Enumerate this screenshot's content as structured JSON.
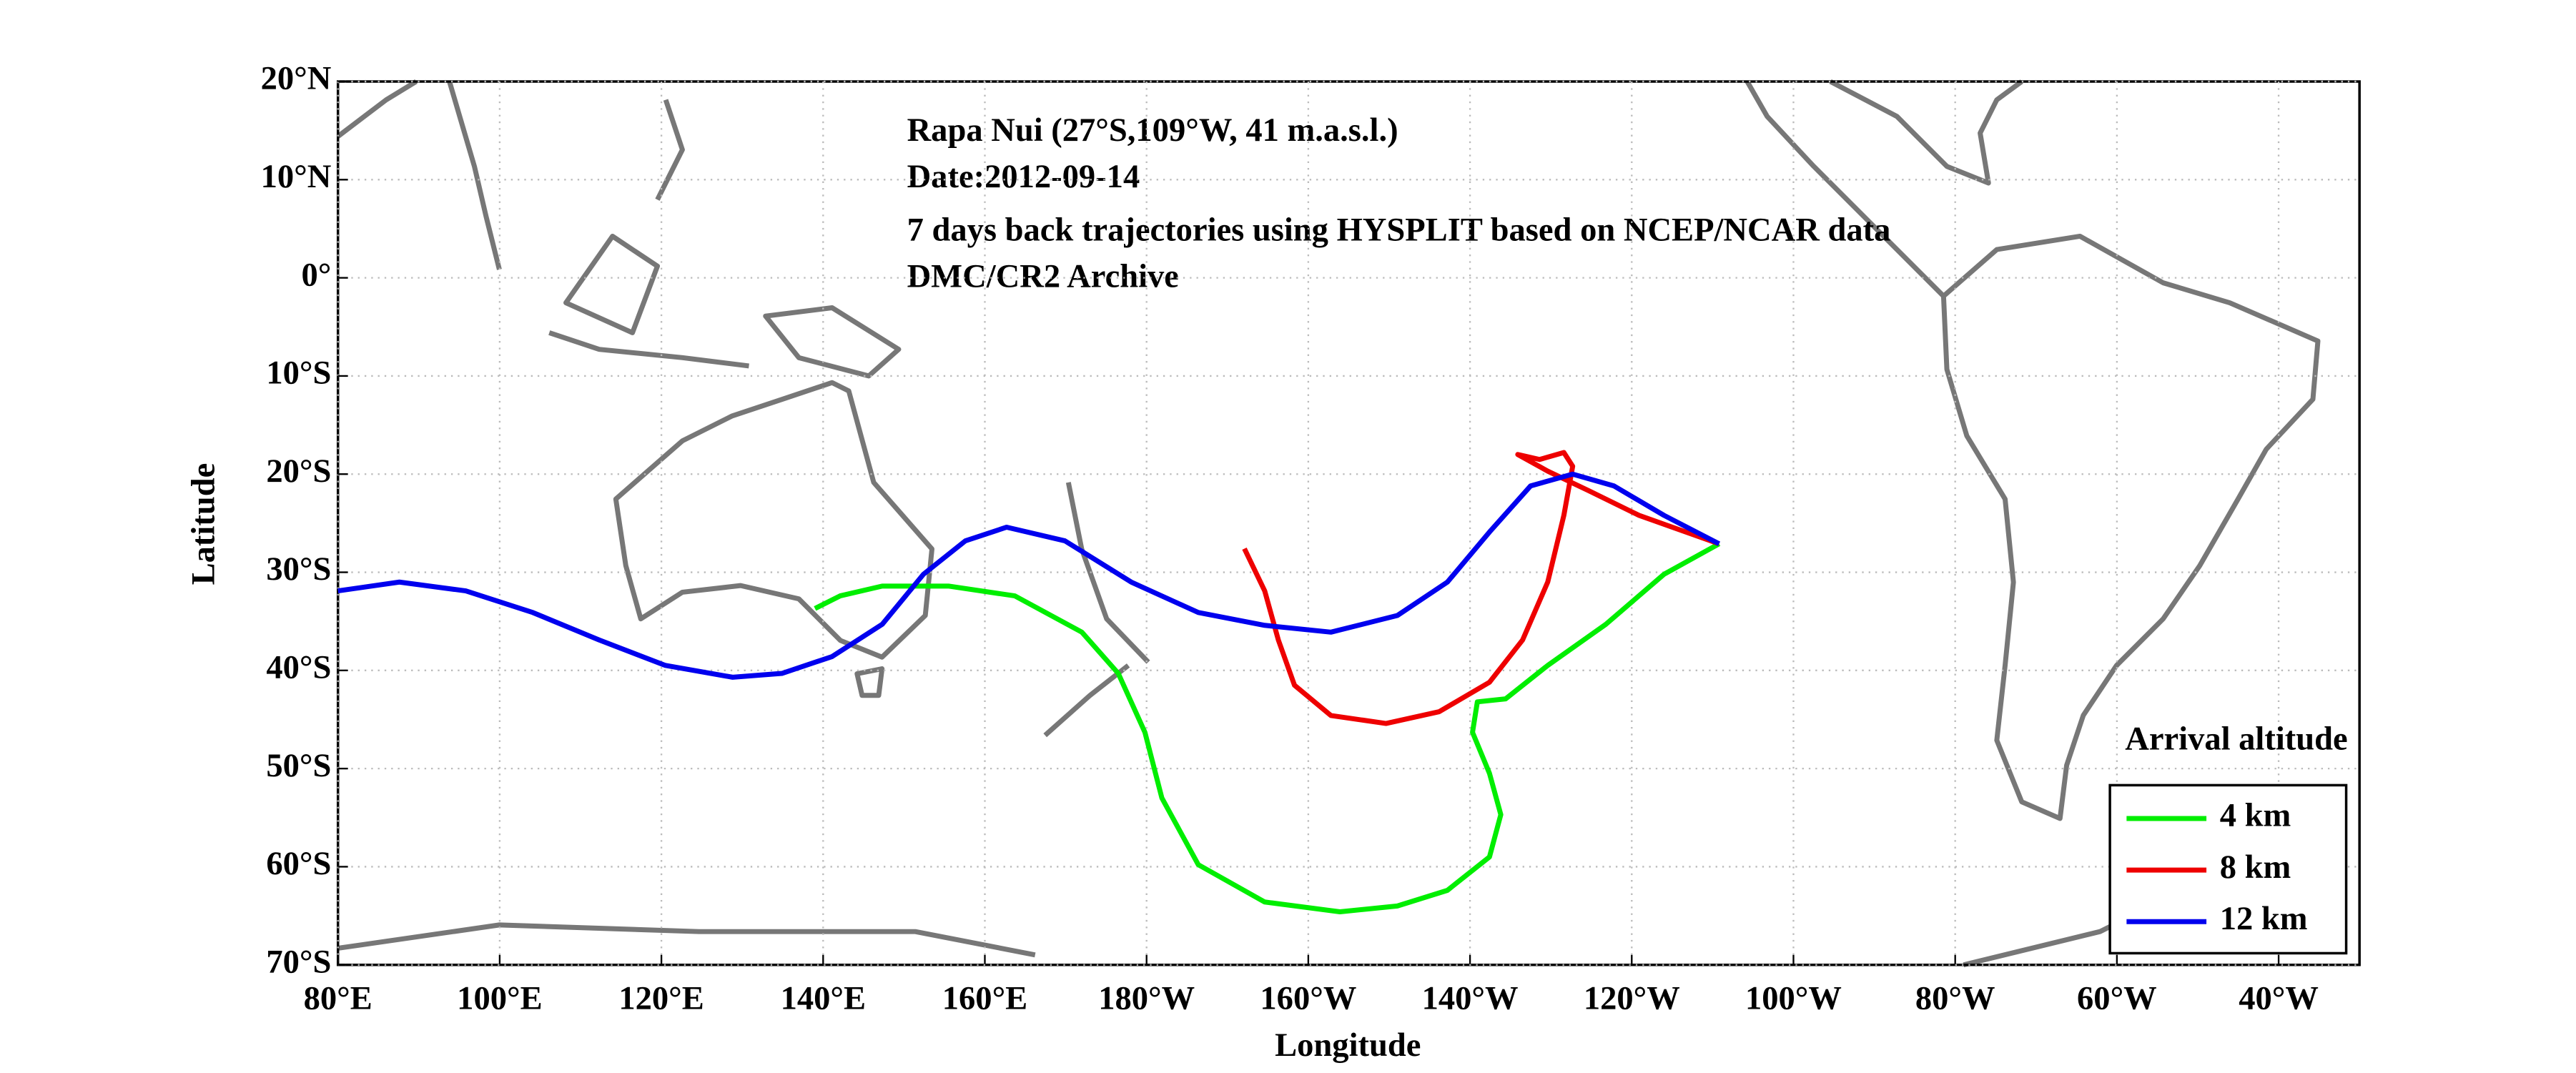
{
  "chart_data": {
    "type": "line",
    "annotations": [
      "Rapa Nui (27°S,109°W, 41 m.a.s.l.)",
      "Date:2012-09-14",
      "7 days back trajectories using HYSPLIT based on NCEP/NCAR data",
      "DMC/CR2 Archive"
    ],
    "x_label": "Longitude",
    "y_label": "Latitude",
    "xlim": [
      80,
      330
    ],
    "ylim": [
      -70,
      20
    ],
    "xticks": [
      {
        "value": 80,
        "label": "80°E"
      },
      {
        "value": 100,
        "label": "100°E"
      },
      {
        "value": 120,
        "label": "120°E"
      },
      {
        "value": 140,
        "label": "140°E"
      },
      {
        "value": 160,
        "label": "160°E"
      },
      {
        "value": 180,
        "label": "180°W"
      },
      {
        "value": 200,
        "label": "160°W"
      },
      {
        "value": 220,
        "label": "140°W"
      },
      {
        "value": 240,
        "label": "120°W"
      },
      {
        "value": 260,
        "label": "100°W"
      },
      {
        "value": 280,
        "label": "80°W"
      },
      {
        "value": 300,
        "label": "60°W"
      },
      {
        "value": 320,
        "label": "40°W"
      }
    ],
    "yticks": [
      {
        "value": 20,
        "label": "20°N"
      },
      {
        "value": 10,
        "label": "10°N"
      },
      {
        "value": 0,
        "label": "0°"
      },
      {
        "value": -10,
        "label": "10°S"
      },
      {
        "value": -20,
        "label": "20°S"
      },
      {
        "value": -30,
        "label": "30°S"
      },
      {
        "value": -40,
        "label": "40°S"
      },
      {
        "value": -50,
        "label": "50°S"
      },
      {
        "value": -60,
        "label": "60°S"
      },
      {
        "value": -70,
        "label": "70°S"
      }
    ],
    "grid": true,
    "legend_title": "Arrival altitude",
    "legend_position": "lower right",
    "series": [
      {
        "name": "4 km",
        "color": "#00ee00",
        "x": [
          250.8,
          244,
          236.8,
          229.6,
          224.4,
          220.9,
          220.3,
          222.4,
          223.8,
          222.4,
          217.2,
          211,
          203.9,
          194.6,
          186.4,
          181.9,
          179.8,
          176.5,
          172,
          163.7,
          155.5,
          147.3,
          142.1,
          139
        ],
        "values": [
          -27.1,
          -30.2,
          -35.3,
          -39.5,
          -42.9,
          -43.2,
          -46.3,
          -50.5,
          -54.7,
          -59,
          -62.4,
          -64,
          -64.6,
          -63.6,
          -59.8,
          -53,
          -46.3,
          -40.3,
          -36.1,
          -32.4,
          -31.4,
          -31.4,
          -32.4,
          -33.7
        ]
      },
      {
        "name": "8 km",
        "color": "#ee0000",
        "x": [
          250.8,
          240.9,
          234.7,
          229.6,
          225.9,
          228.6,
          231.6,
          232.7,
          231.6,
          229.6,
          226.5,
          222.4,
          216.2,
          209.6,
          202.8,
          198.3,
          196.3,
          194.6,
          192.1
        ],
        "values": [
          -27.1,
          -24.2,
          -21.7,
          -19.7,
          -18,
          -18.5,
          -17.8,
          -19.2,
          -24.2,
          -31,
          -36.9,
          -41.2,
          -44.2,
          -45.4,
          -44.6,
          -41.5,
          -36.9,
          -31.9,
          -27.6
        ]
      },
      {
        "name": "12 km",
        "color": "#0000ee",
        "x": [
          250.8,
          244,
          237.8,
          232.7,
          227.5,
          222.4,
          217.2,
          211,
          202.8,
          194.6,
          186.4,
          178.1,
          169.9,
          162.7,
          157.6,
          152.4,
          147.3,
          141.1,
          134.9,
          128.8,
          120.5,
          112.3,
          104.1,
          95.8,
          87.6,
          80
        ],
        "values": [
          -27.1,
          -24.2,
          -21.2,
          -20,
          -21.2,
          -25.9,
          -31,
          -34.4,
          -36.1,
          -35.4,
          -34.1,
          -31,
          -26.8,
          -25.4,
          -26.8,
          -30.2,
          -35.3,
          -38.6,
          -40.3,
          -40.7,
          -39.5,
          -36.9,
          -34.1,
          -31.9,
          -31,
          -31.9
        ]
      }
    ]
  }
}
